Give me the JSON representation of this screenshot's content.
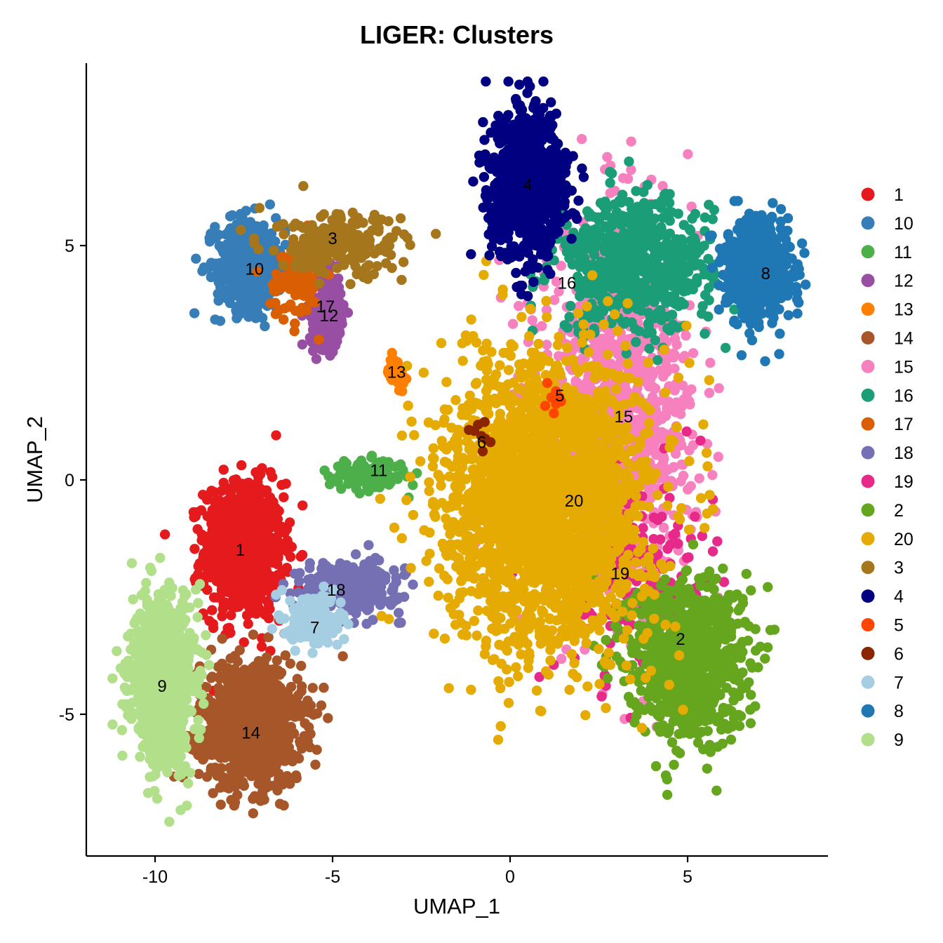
{
  "chart_data": {
    "type": "scatter",
    "title": "LIGER: Clusters",
    "xlabel": "UMAP_1",
    "ylabel": "UMAP_2",
    "xlim": [
      -12,
      9
    ],
    "ylim": [
      -8,
      8.8
    ],
    "xticks": [
      -10,
      -5,
      0,
      5
    ],
    "xtick_labels": [
      "-10",
      "-5",
      "0",
      "5"
    ],
    "yticks": [
      -5,
      0,
      5
    ],
    "ytick_labels": [
      "-5",
      "0",
      "5"
    ],
    "legend_position": "right",
    "grid": false,
    "legend": [
      {
        "label": "1",
        "color": "#E41A1C"
      },
      {
        "label": "10",
        "color": "#377EB8"
      },
      {
        "label": "11",
        "color": "#4DAF4A"
      },
      {
        "label": "12",
        "color": "#984EA3"
      },
      {
        "label": "13",
        "color": "#FF7F00"
      },
      {
        "label": "14",
        "color": "#A65628"
      },
      {
        "label": "15",
        "color": "#F781BF"
      },
      {
        "label": "16",
        "color": "#1B9E77"
      },
      {
        "label": "17",
        "color": "#D95F02"
      },
      {
        "label": "18",
        "color": "#7570B3"
      },
      {
        "label": "19",
        "color": "#E7298A"
      },
      {
        "label": "2",
        "color": "#66A61E"
      },
      {
        "label": "20",
        "color": "#E6AB02"
      },
      {
        "label": "3",
        "color": "#A6761D"
      },
      {
        "label": "4",
        "color": "#000080"
      },
      {
        "label": "5",
        "color": "#FF4500"
      },
      {
        "label": "6",
        "color": "#8B2500"
      },
      {
        "label": "7",
        "color": "#A6CEE3"
      },
      {
        "label": "8",
        "color": "#1F78B4"
      },
      {
        "label": "9",
        "color": "#B2DF8A"
      }
    ],
    "clusters": [
      {
        "label": "1",
        "color": "#E41A1C",
        "center": [
          -7.5,
          -1.5
        ],
        "spread": [
          1.0,
          1.3
        ],
        "n": 900,
        "label_pos": [
          -7.6,
          -1.5
        ]
      },
      {
        "label": "10",
        "color": "#377EB8",
        "center": [
          -7.3,
          4.6
        ],
        "spread": [
          0.9,
          0.9
        ],
        "n": 450,
        "label_pos": [
          -7.2,
          4.5
        ]
      },
      {
        "label": "11",
        "color": "#4DAF4A",
        "center": [
          -4.0,
          0.1
        ],
        "spread": [
          1.0,
          0.3
        ],
        "n": 120,
        "label_pos": [
          -3.7,
          0.2
        ]
      },
      {
        "label": "12",
        "color": "#984EA3",
        "center": [
          -5.2,
          3.6
        ],
        "spread": [
          0.4,
          0.7
        ],
        "n": 250,
        "label_pos": [
          -5.1,
          3.5
        ]
      },
      {
        "label": "13",
        "color": "#FF7F00",
        "center": [
          -3.2,
          2.3
        ],
        "spread": [
          0.2,
          0.3
        ],
        "n": 50,
        "label_pos": [
          -3.2,
          2.3
        ]
      },
      {
        "label": "14",
        "color": "#A65628",
        "center": [
          -7.3,
          -5.2
        ],
        "spread": [
          1.3,
          1.2
        ],
        "n": 900,
        "label_pos": [
          -7.3,
          -5.4
        ]
      },
      {
        "label": "15",
        "color": "#F781BF",
        "center": [
          3.0,
          1.5
        ],
        "spread": [
          2.0,
          3.5
        ],
        "n": 1000,
        "label_pos": [
          3.2,
          1.35
        ]
      },
      {
        "label": "16",
        "color": "#1B9E77",
        "center": [
          3.5,
          4.6
        ],
        "spread": [
          2.0,
          1.3
        ],
        "n": 600,
        "label_pos": [
          1.6,
          4.2
        ]
      },
      {
        "label": "17",
        "color": "#D95F02",
        "center": [
          -6.0,
          4.3
        ],
        "spread": [
          0.7,
          0.8
        ],
        "n": 90,
        "label_pos": [
          -5.2,
          3.7
        ]
      },
      {
        "label": "18",
        "color": "#7570B3",
        "center": [
          -4.5,
          -2.3
        ],
        "spread": [
          1.3,
          0.5
        ],
        "n": 300,
        "label_pos": [
          -4.9,
          -2.35
        ]
      },
      {
        "label": "19",
        "color": "#E7298A",
        "center": [
          3.5,
          -2.0
        ],
        "spread": [
          2.0,
          2.0
        ],
        "n": 200,
        "label_pos": [
          3.1,
          -2.0
        ]
      },
      {
        "label": "2",
        "color": "#66A61E",
        "center": [
          5.0,
          -3.8
        ],
        "spread": [
          1.5,
          1.5
        ],
        "n": 900,
        "label_pos": [
          4.8,
          -3.4
        ]
      },
      {
        "label": "20",
        "color": "#E6AB02",
        "center": [
          1.0,
          -0.5
        ],
        "spread": [
          2.6,
          2.8
        ],
        "n": 2400,
        "label_pos": [
          1.8,
          -0.45
        ]
      },
      {
        "label": "3",
        "color": "#A6761D",
        "center": [
          -4.8,
          5.0
        ],
        "spread": [
          1.6,
          0.6
        ],
        "n": 220,
        "label_pos": [
          -5.0,
          5.15
        ]
      },
      {
        "label": "4",
        "color": "#000080",
        "center": [
          0.5,
          6.3
        ],
        "spread": [
          1.0,
          1.4
        ],
        "n": 800,
        "label_pos": [
          0.5,
          6.3
        ]
      },
      {
        "label": "5",
        "color": "#FF4500",
        "center": [
          1.4,
          1.8
        ],
        "spread": [
          0.3,
          0.3
        ],
        "n": 8,
        "label_pos": [
          1.4,
          1.8
        ]
      },
      {
        "label": "6",
        "color": "#8B2500",
        "center": [
          -0.8,
          1.0
        ],
        "spread": [
          0.3,
          0.3
        ],
        "n": 8,
        "label_pos": [
          -0.8,
          0.8
        ]
      },
      {
        "label": "7",
        "color": "#A6CEE3",
        "center": [
          -5.5,
          -3.0
        ],
        "spread": [
          0.7,
          0.5
        ],
        "n": 180,
        "label_pos": [
          -5.5,
          -3.15
        ]
      },
      {
        "label": "8",
        "color": "#1F78B4",
        "center": [
          7.0,
          4.5
        ],
        "spread": [
          0.8,
          0.9
        ],
        "n": 650,
        "label_pos": [
          7.2,
          4.4
        ]
      },
      {
        "label": "9",
        "color": "#B2DF8A",
        "center": [
          -9.8,
          -4.3
        ],
        "spread": [
          0.8,
          1.6
        ],
        "n": 900,
        "label_pos": [
          -9.8,
          -4.4
        ]
      }
    ]
  }
}
